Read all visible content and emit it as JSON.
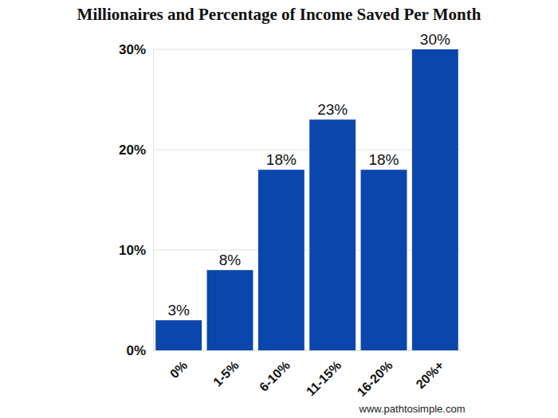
{
  "chart_data": {
    "type": "bar",
    "title": "Millionaires and Percentage of Income Saved Per Month",
    "categories": [
      "0%",
      "1-5%",
      "6-10%",
      "11-15%",
      "16-20%",
      "20%+"
    ],
    "values": [
      3,
      8,
      18,
      23,
      18,
      30
    ],
    "value_labels": [
      "3%",
      "8%",
      "18%",
      "23%",
      "18%",
      "30%"
    ],
    "color": "#0b46ad",
    "ylim": [
      0,
      30
    ],
    "yticks": [
      {
        "value": 0,
        "label": "0%"
      },
      {
        "value": 10,
        "label": "10%"
      },
      {
        "value": 20,
        "label": "20%"
      },
      {
        "value": 30,
        "label": "30%"
      }
    ],
    "grid": true,
    "data_labels": true,
    "annotations": [
      "www.pathtosimple.com"
    ]
  }
}
